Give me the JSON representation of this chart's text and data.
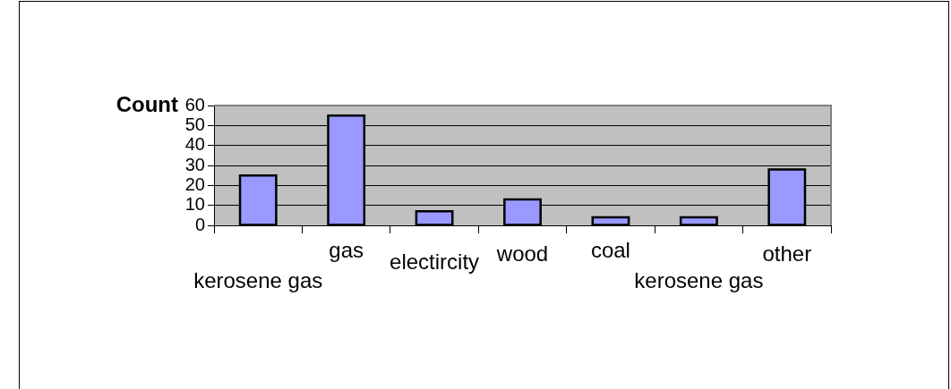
{
  "chart_data": {
    "type": "bar",
    "ylabel": "Count",
    "categories": [
      "kerosene gas",
      "gas",
      "electircity",
      "wood",
      "coal",
      "kerosene gas",
      "other"
    ],
    "values": [
      25,
      55,
      7,
      13,
      4,
      4,
      28
    ],
    "color": "#9999ff",
    "ylim": [
      0,
      60
    ],
    "yticks": [
      0,
      10,
      20,
      30,
      40,
      50,
      60
    ],
    "grid": "y"
  }
}
